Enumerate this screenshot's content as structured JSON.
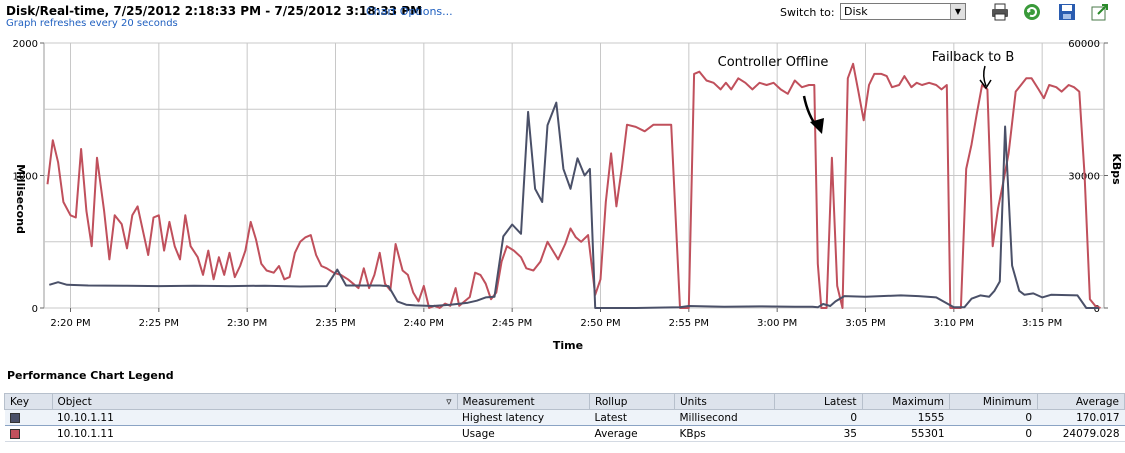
{
  "header": {
    "title": "Disk/Real-time, 7/25/2012 2:18:33 PM - 7/25/2012 3:18:33 PM",
    "chart_options_link": "Chart Options...",
    "refresh_note": "Graph refreshes every 20 seconds",
    "switch_label": "Switch to:",
    "switch_value": "Disk",
    "icons": [
      "printer-icon",
      "refresh-icon",
      "save-icon",
      "export-icon"
    ]
  },
  "chart_data": {
    "type": "line",
    "xlabel": "Time",
    "ylabel_left": "Millisecond",
    "ylabel_right": "KBps",
    "x_ticks": [
      "2:20 PM",
      "2:25 PM",
      "2:30 PM",
      "2:35 PM",
      "2:40 PM",
      "2:45 PM",
      "2:50 PM",
      "2:55 PM",
      "3:00 PM",
      "3:05 PM",
      "3:10 PM",
      "3:15 PM"
    ],
    "xlim_minutes": [
      18.5,
      78.5
    ],
    "ylim_left": [
      0,
      2000
    ],
    "ylim_right": [
      0,
      60000
    ],
    "y_ticks_left": [
      "0",
      "1000",
      "2000"
    ],
    "y_ticks_right": [
      "0",
      "30000",
      "60000"
    ],
    "grid": true,
    "colors": {
      "latency": "#4a5068",
      "usage": "#c0505c",
      "grid": "#c8c8c8"
    },
    "series": [
      {
        "name": "Highest latency",
        "axis": "left",
        "points": [
          [
            18.8,
            175
          ],
          [
            19.3,
            195
          ],
          [
            19.8,
            175
          ],
          [
            21.0,
            170
          ],
          [
            23.0,
            168
          ],
          [
            25.0,
            165
          ],
          [
            27.0,
            168
          ],
          [
            29.0,
            165
          ],
          [
            31.0,
            168
          ],
          [
            33.0,
            162
          ],
          [
            34.5,
            165
          ],
          [
            35.1,
            290
          ],
          [
            35.6,
            170
          ],
          [
            36.5,
            170
          ],
          [
            37.5,
            170
          ],
          [
            38.0,
            165
          ],
          [
            38.5,
            50
          ],
          [
            39.0,
            25
          ],
          [
            39.5,
            20
          ],
          [
            40.5,
            15
          ],
          [
            41.5,
            25
          ],
          [
            42.5,
            40
          ],
          [
            43.0,
            55
          ],
          [
            43.5,
            80
          ],
          [
            44.0,
            85
          ],
          [
            44.5,
            540
          ],
          [
            45.0,
            630
          ],
          [
            45.5,
            560
          ],
          [
            45.9,
            1480
          ],
          [
            46.3,
            900
          ],
          [
            46.7,
            800
          ],
          [
            47.0,
            1380
          ],
          [
            47.5,
            1550
          ],
          [
            47.9,
            1050
          ],
          [
            48.3,
            900
          ],
          [
            48.7,
            1130
          ],
          [
            49.1,
            1000
          ],
          [
            49.4,
            1050
          ],
          [
            49.7,
            0
          ],
          [
            50.0,
            0
          ],
          [
            52.0,
            0
          ],
          [
            54.5,
            5
          ],
          [
            55.0,
            15
          ],
          [
            57.0,
            10
          ],
          [
            59.0,
            12
          ],
          [
            61.0,
            10
          ],
          [
            62.0,
            10
          ],
          [
            62.3,
            5
          ],
          [
            62.6,
            30
          ],
          [
            63.0,
            15
          ],
          [
            63.3,
            50
          ],
          [
            63.8,
            90
          ],
          [
            65.0,
            85
          ],
          [
            67.0,
            95
          ],
          [
            68.0,
            90
          ],
          [
            69.0,
            80
          ],
          [
            70.0,
            5
          ],
          [
            70.6,
            5
          ],
          [
            71.0,
            70
          ],
          [
            71.5,
            95
          ],
          [
            72.0,
            85
          ],
          [
            72.3,
            130
          ],
          [
            72.6,
            200
          ],
          [
            72.9,
            1370
          ],
          [
            73.3,
            320
          ],
          [
            73.7,
            130
          ],
          [
            74.0,
            100
          ],
          [
            74.5,
            110
          ],
          [
            75.0,
            80
          ],
          [
            75.5,
            100
          ],
          [
            77.0,
            95
          ],
          [
            77.5,
            0
          ],
          [
            78.2,
            0
          ]
        ]
      },
      {
        "name": "Usage",
        "axis": "right",
        "points": [
          [
            18.7,
            28000
          ],
          [
            19.0,
            38000
          ],
          [
            19.3,
            33000
          ],
          [
            19.6,
            24000
          ],
          [
            20.0,
            21000
          ],
          [
            20.3,
            20500
          ],
          [
            20.6,
            36000
          ],
          [
            20.9,
            22000
          ],
          [
            21.2,
            14000
          ],
          [
            21.5,
            34000
          ],
          [
            21.9,
            22000
          ],
          [
            22.2,
            11000
          ],
          [
            22.5,
            21000
          ],
          [
            22.9,
            19000
          ],
          [
            23.2,
            13500
          ],
          [
            23.5,
            21000
          ],
          [
            23.8,
            23000
          ],
          [
            24.1,
            17500
          ],
          [
            24.4,
            12000
          ],
          [
            24.7,
            20500
          ],
          [
            25.0,
            21000
          ],
          [
            25.3,
            13000
          ],
          [
            25.6,
            19500
          ],
          [
            25.9,
            14000
          ],
          [
            26.2,
            11000
          ],
          [
            26.5,
            21000
          ],
          [
            26.8,
            14000
          ],
          [
            27.2,
            11500
          ],
          [
            27.5,
            7500
          ],
          [
            27.8,
            13000
          ],
          [
            28.1,
            6500
          ],
          [
            28.4,
            11500
          ],
          [
            28.7,
            7500
          ],
          [
            29.0,
            12500
          ],
          [
            29.3,
            7000
          ],
          [
            29.6,
            9500
          ],
          [
            29.9,
            13000
          ],
          [
            30.2,
            19500
          ],
          [
            30.5,
            15500
          ],
          [
            30.8,
            10000
          ],
          [
            31.1,
            8500
          ],
          [
            31.5,
            8000
          ],
          [
            31.8,
            9500
          ],
          [
            32.1,
            6500
          ],
          [
            32.4,
            7000
          ],
          [
            32.7,
            12500
          ],
          [
            33.0,
            15000
          ],
          [
            33.3,
            16000
          ],
          [
            33.6,
            16500
          ],
          [
            33.9,
            12000
          ],
          [
            34.2,
            9500
          ],
          [
            34.5,
            9000
          ],
          [
            34.9,
            8000
          ],
          [
            35.3,
            7500
          ],
          [
            35.7,
            6500
          ],
          [
            36.0,
            5500
          ],
          [
            36.3,
            4500
          ],
          [
            36.6,
            9000
          ],
          [
            36.9,
            4500
          ],
          [
            37.2,
            7500
          ],
          [
            37.5,
            12500
          ],
          [
            37.8,
            5500
          ],
          [
            38.1,
            4000
          ],
          [
            38.4,
            14500
          ],
          [
            38.8,
            8500
          ],
          [
            39.1,
            7500
          ],
          [
            39.4,
            3500
          ],
          [
            39.7,
            1500
          ],
          [
            40.0,
            5000
          ],
          [
            40.3,
            0
          ],
          [
            40.6,
            500
          ],
          [
            40.9,
            0
          ],
          [
            41.2,
            1000
          ],
          [
            41.5,
            500
          ],
          [
            41.8,
            4500
          ],
          [
            42.0,
            500
          ],
          [
            42.3,
            1500
          ],
          [
            42.6,
            2500
          ],
          [
            42.9,
            8000
          ],
          [
            43.2,
            7500
          ],
          [
            43.5,
            5500
          ],
          [
            43.8,
            2000
          ],
          [
            44.1,
            3500
          ],
          [
            44.4,
            10500
          ],
          [
            44.7,
            14000
          ],
          [
            45.1,
            13000
          ],
          [
            45.5,
            11500
          ],
          [
            45.8,
            9000
          ],
          [
            46.2,
            8500
          ],
          [
            46.6,
            10500
          ],
          [
            47.0,
            15000
          ],
          [
            47.3,
            13000
          ],
          [
            47.6,
            11000
          ],
          [
            48.0,
            14500
          ],
          [
            48.3,
            18000
          ],
          [
            48.6,
            16000
          ],
          [
            48.9,
            15000
          ],
          [
            49.3,
            16500
          ],
          [
            49.7,
            3000
          ],
          [
            50.0,
            6500
          ],
          [
            50.3,
            24000
          ],
          [
            50.6,
            35000
          ],
          [
            50.9,
            23000
          ],
          [
            51.2,
            31500
          ],
          [
            51.5,
            41500
          ],
          [
            52.0,
            41000
          ],
          [
            52.5,
            40000
          ],
          [
            53.0,
            41500
          ],
          [
            53.5,
            41500
          ],
          [
            54.0,
            41500
          ],
          [
            54.5,
            0
          ],
          [
            55.0,
            0
          ],
          [
            55.3,
            53000
          ],
          [
            55.6,
            53500
          ],
          [
            56.0,
            51500
          ],
          [
            56.4,
            51000
          ],
          [
            56.8,
            49500
          ],
          [
            57.1,
            51000
          ],
          [
            57.4,
            49500
          ],
          [
            57.8,
            52000
          ],
          [
            58.2,
            51000
          ],
          [
            58.6,
            49500
          ],
          [
            59.0,
            51000
          ],
          [
            59.4,
            50500
          ],
          [
            59.8,
            51000
          ],
          [
            60.2,
            49500
          ],
          [
            60.6,
            48500
          ],
          [
            61.0,
            51500
          ],
          [
            61.4,
            50000
          ],
          [
            61.8,
            50500
          ],
          [
            62.1,
            50500
          ],
          [
            62.3,
            10000
          ],
          [
            62.5,
            0
          ],
          [
            62.8,
            0
          ],
          [
            63.1,
            34000
          ],
          [
            63.4,
            5000
          ],
          [
            63.7,
            0
          ],
          [
            64.0,
            52000
          ],
          [
            64.3,
            55300
          ],
          [
            64.6,
            49000
          ],
          [
            64.9,
            42500
          ],
          [
            65.2,
            50500
          ],
          [
            65.5,
            53000
          ],
          [
            65.9,
            53000
          ],
          [
            66.2,
            52500
          ],
          [
            66.5,
            50000
          ],
          [
            66.9,
            50500
          ],
          [
            67.2,
            52500
          ],
          [
            67.6,
            50000
          ],
          [
            67.9,
            51000
          ],
          [
            68.2,
            50500
          ],
          [
            68.6,
            51000
          ],
          [
            69.0,
            50500
          ],
          [
            69.3,
            49500
          ],
          [
            69.6,
            50500
          ],
          [
            69.8,
            0
          ],
          [
            70.1,
            0
          ],
          [
            70.4,
            0
          ],
          [
            70.7,
            31500
          ],
          [
            71.0,
            37000
          ],
          [
            71.3,
            44000
          ],
          [
            71.6,
            50500
          ],
          [
            71.9,
            49500
          ],
          [
            72.2,
            14000
          ],
          [
            72.5,
            22500
          ],
          [
            72.8,
            28500
          ],
          [
            73.1,
            35000
          ],
          [
            73.5,
            49000
          ],
          [
            73.8,
            50500
          ],
          [
            74.1,
            52000
          ],
          [
            74.4,
            52000
          ],
          [
            74.8,
            49500
          ],
          [
            75.1,
            47500
          ],
          [
            75.4,
            50500
          ],
          [
            75.8,
            50000
          ],
          [
            76.1,
            49000
          ],
          [
            76.5,
            50500
          ],
          [
            76.8,
            50000
          ],
          [
            77.1,
            49000
          ],
          [
            77.4,
            30000
          ],
          [
            77.7,
            2000
          ],
          [
            78.0,
            500
          ],
          [
            78.3,
            0
          ]
        ]
      }
    ],
    "annotations": [
      {
        "text": "Controller Offline"
      },
      {
        "text": "Failback to B"
      }
    ]
  },
  "legend": {
    "title": "Performance Chart Legend",
    "columns": [
      "Key",
      "Object",
      "Measurement",
      "Rollup",
      "Units",
      "Latest",
      "Maximum",
      "Minimum",
      "Average"
    ],
    "rows": [
      {
        "color": "#4a5068",
        "object": "10.10.1.11",
        "measurement": "Highest latency",
        "rollup": "Latest",
        "units": "Millisecond",
        "latest": "0",
        "maximum": "1555",
        "minimum": "0",
        "average": "170.017"
      },
      {
        "color": "#c0505c",
        "object": "10.10.1.11",
        "measurement": "Usage",
        "rollup": "Average",
        "units": "KBps",
        "latest": "35",
        "maximum": "55301",
        "minimum": "0",
        "average": "24079.028"
      }
    ]
  }
}
